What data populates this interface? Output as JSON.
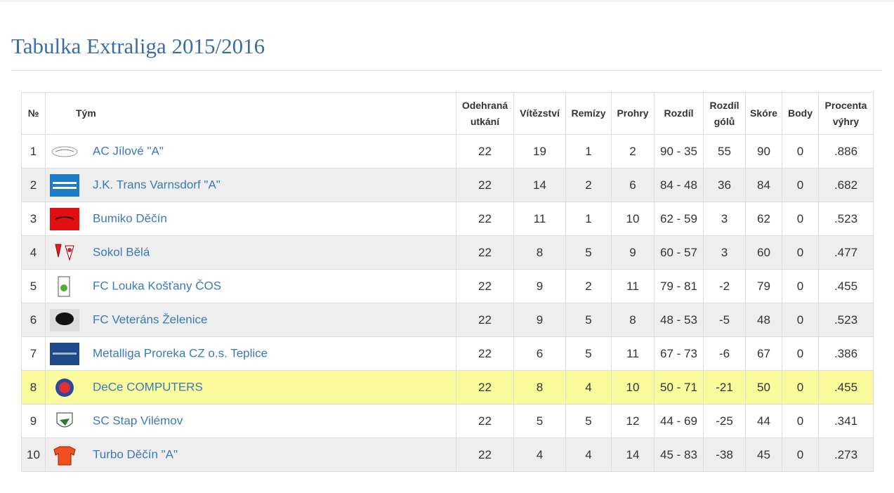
{
  "header": {
    "title": "Tabulka Extraliga 2015/2016"
  },
  "table": {
    "columns": [
      "№",
      "Tým",
      "Odehraná utkání",
      "Vítězství",
      "Remízy",
      "Prohry",
      "Rozdíl",
      "Rozdíl gólů",
      "Skóre",
      "Body",
      "Procenta výhry"
    ],
    "rows": [
      [
        1,
        "AC Jílové \"A\"",
        22,
        19,
        1,
        2,
        "90 - 35",
        55,
        90,
        0,
        ".886"
      ],
      [
        2,
        "J.K. Trans Varnsdorf \"A\"",
        22,
        14,
        2,
        6,
        "84 - 48",
        36,
        84,
        0,
        ".682"
      ],
      [
        3,
        "Bumiko Děčín",
        22,
        11,
        1,
        10,
        "62 - 59",
        3,
        62,
        0,
        ".523"
      ],
      [
        4,
        "Sokol Bělá",
        22,
        8,
        5,
        9,
        "60 - 57",
        3,
        60,
        0,
        ".477"
      ],
      [
        5,
        "FC Louka Košťany ČOS",
        22,
        9,
        2,
        11,
        "79 - 81",
        -2,
        79,
        0,
        ".455"
      ],
      [
        6,
        "FC Veteráns Želenice",
        22,
        9,
        5,
        8,
        "48 - 53",
        -5,
        48,
        0,
        ".523"
      ],
      [
        7,
        "Metalliga Proreka CZ o.s. Teplice",
        22,
        6,
        5,
        11,
        "67 - 73",
        -6,
        67,
        0,
        ".386"
      ],
      [
        8,
        "DeCe COMPUTERS",
        22,
        8,
        4,
        10,
        "50 - 71",
        -21,
        50,
        0,
        ".455"
      ],
      [
        9,
        "SC Stap Vilémov",
        22,
        5,
        5,
        12,
        "44 - 69",
        -25,
        44,
        0,
        ".341"
      ],
      [
        10,
        "Turbo Děčín \"A\"",
        22,
        4,
        4,
        14,
        "45 - 83",
        -38,
        45,
        0,
        ".273"
      ]
    ]
  }
}
